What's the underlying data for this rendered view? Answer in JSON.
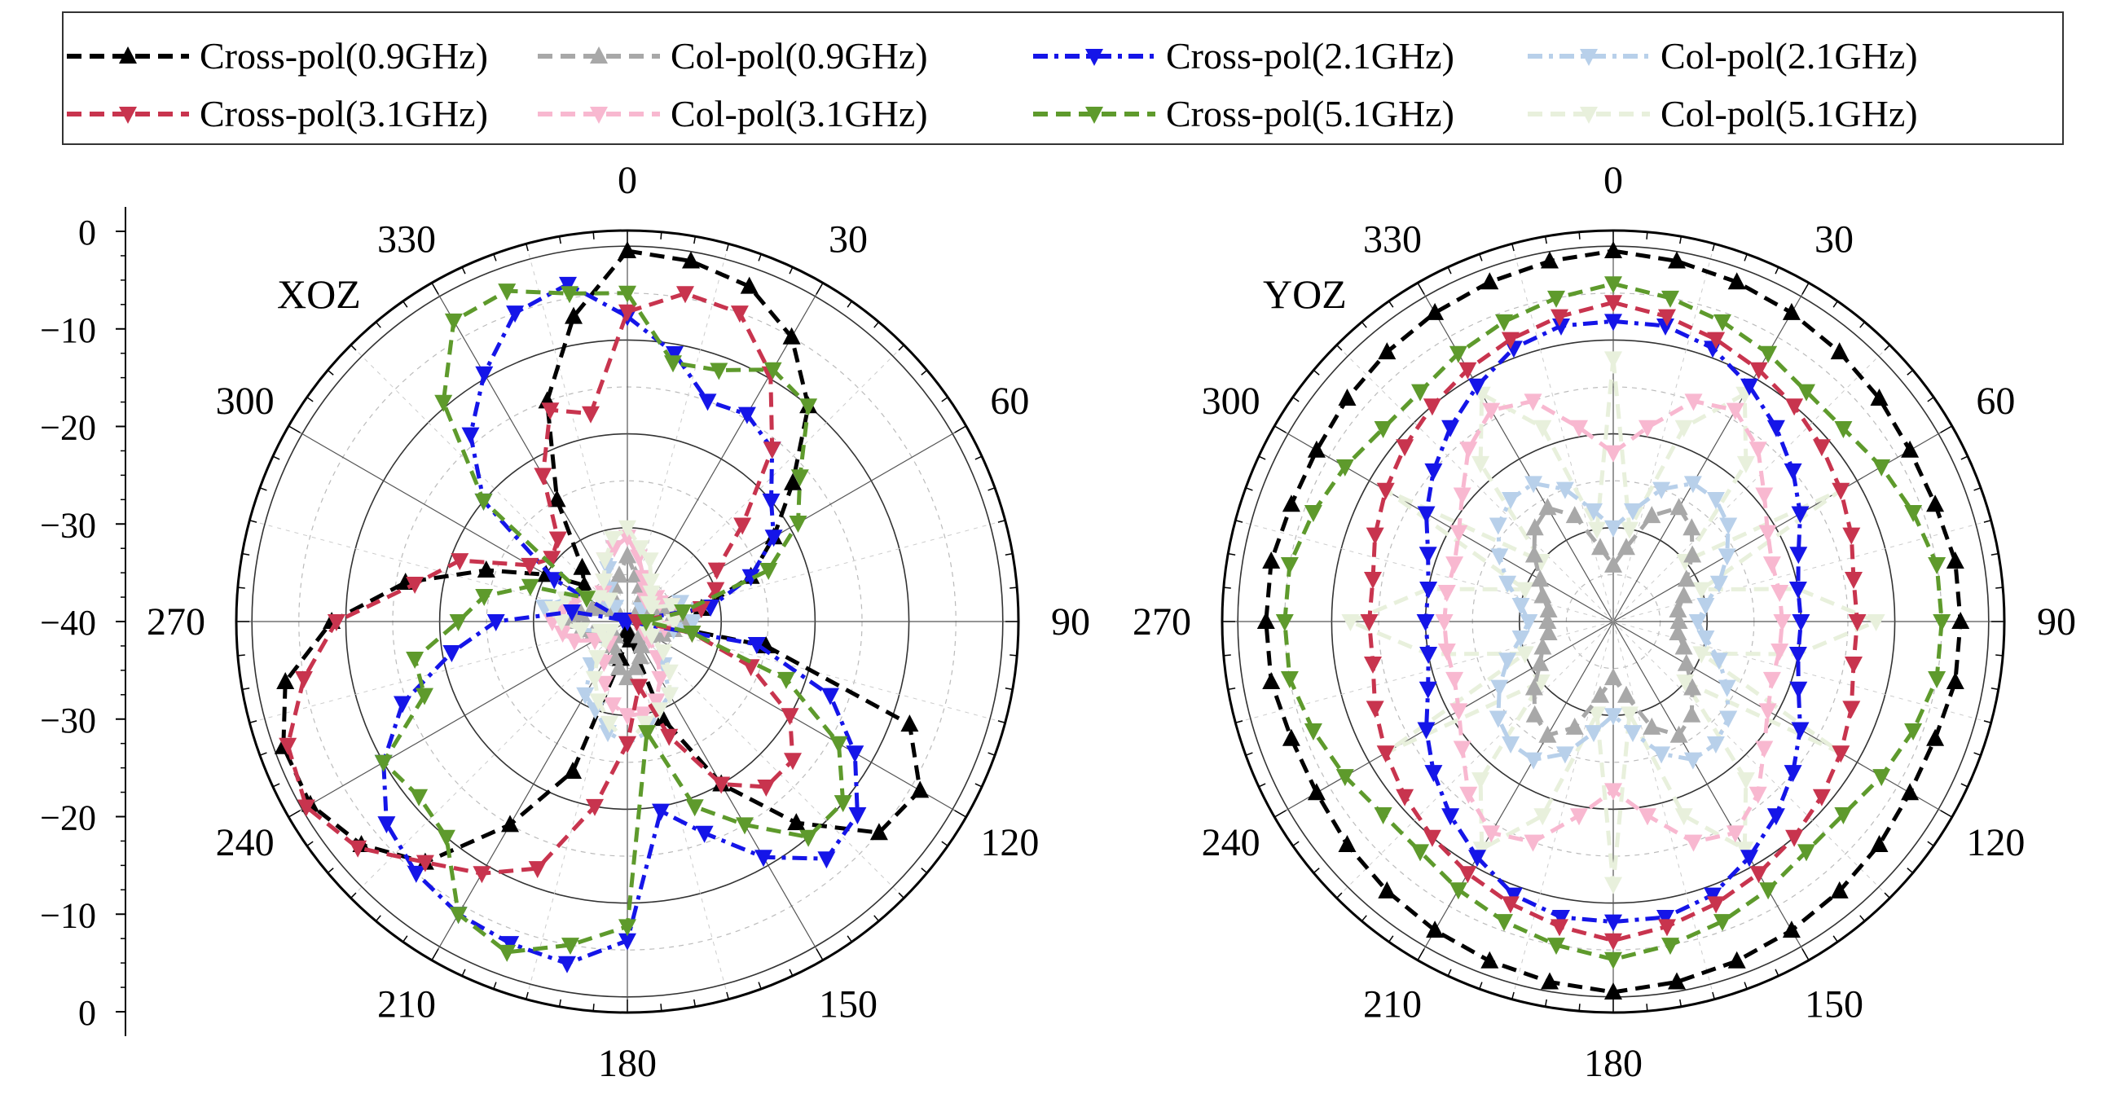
{
  "chart_data": {
    "type": "polar-line",
    "unit_note": "normalized radiation pattern in dB, radial range -40 (center) to 0 (outer ring)",
    "radial_range": [
      -40,
      0
    ],
    "radial_ticks": [
      0,
      -10,
      -20,
      -30,
      -40,
      -30,
      -20,
      -10,
      0
    ],
    "angle_ticks": [
      "0",
      "30",
      "60",
      "90",
      "120",
      "150",
      "180",
      "210",
      "240",
      "270",
      "300",
      "330"
    ],
    "angle_step_deg": 10,
    "legend": {
      "placement": "top, 4 columns x 2 rows",
      "entries": [
        {
          "label": "Cross-pol(0.9GHz)",
          "color": "#000000",
          "marker": "triangle-up",
          "dash": "dash"
        },
        {
          "label": "Col-pol(0.9GHz)",
          "color": "#a8a8a8",
          "marker": "triangle-up",
          "dash": "dash"
        },
        {
          "label": "Cross-pol(2.1GHz)",
          "color": "#1515e8",
          "marker": "triangle-down",
          "dash": "dashdot"
        },
        {
          "label": "Col-pol(2.1GHz)",
          "color": "#b8d0ea",
          "marker": "triangle-down",
          "dash": "dashdot"
        },
        {
          "label": "Cross-pol(3.1GHz)",
          "color": "#c8344e",
          "marker": "triangle-down",
          "dash": "dash"
        },
        {
          "label": "Col-pol(3.1GHz)",
          "color": "#f8b8d0",
          "marker": "triangle-down",
          "dash": "dash"
        },
        {
          "label": "Cross-pol(5.1GHz)",
          "color": "#5e9a2c",
          "marker": "triangle-down",
          "dash": "dash"
        },
        {
          "label": "Col-pol(5.1GHz)",
          "color": "#e8f0dc",
          "marker": "triangle-down",
          "dash": "dash"
        }
      ]
    },
    "panels": [
      {
        "title": "XOZ",
        "series": [
          {
            "name": "Cross-pol(0.9GHz)",
            "values": [
              -0.5,
              -1,
              -2,
              -5,
              -10,
              -17,
              -22,
              -26,
              -32,
              -38,
              -25,
              -8,
              -4,
              -5,
              -12,
              -20,
              -29,
              -38,
              -39,
              -36,
              -23,
              -15,
              -6.5,
              -3,
              -1,
              -1,
              -3,
              -8.5,
              -16,
              -24,
              -30,
              -34,
              -32.5,
              -25,
              -15,
              -7
            ]
          },
          {
            "name": "Col-pol(0.9GHz)",
            "values": [
              -33,
              -35,
              -36,
              -37,
              -38,
              -38,
              -37,
              -36,
              -35,
              -34,
              -35,
              -36,
              -37,
              -38,
              -38,
              -37,
              -36,
              -35,
              -34,
              -35,
              -36,
              -37,
              -38,
              -38,
              -37,
              -36,
              -35,
              -34,
              -35,
              -36,
              -37,
              -38,
              -38,
              -37,
              -36,
              -35
            ]
          },
          {
            "name": "Col-pol(2.1GHz)",
            "values": [
              -31,
              -33,
              -35,
              -36,
              -37,
              -38,
              -37,
              -34,
              -31,
              -33,
              -35,
              -37,
              -38,
              -37,
              -34,
              -31,
              -30,
              -28,
              -27,
              -28,
              -30,
              -31,
              -34,
              -37,
              -38,
              -37,
              -35,
              -33,
              -31,
              -33,
              -35,
              -37,
              -38,
              -36,
              -34,
              -32
            ]
          },
          {
            "name": "Col-pol(3.1GHz)",
            "values": [
              -31,
              -33,
              -35,
              -36,
              -37,
              -36,
              -36,
              -35,
              -34,
              -35,
              -36,
              -37,
              -38,
              -37,
              -35,
              -33,
              -31,
              -30,
              -30,
              -31,
              -33,
              -35,
              -37,
              -37,
              -36,
              -34,
              -33,
              -32,
              -33,
              -34,
              -35,
              -36,
              -36,
              -35,
              -33,
              -32
            ]
          },
          {
            "name": "Col-pol(5.1GHz)",
            "values": [
              -30,
              -32,
              -33,
              -35,
              -36,
              -37,
              -37,
              -35,
              -34,
              -35,
              -37,
              -38,
              -37,
              -35,
              -33,
              -31,
              -30,
              -29,
              -27,
              -29,
              -31,
              -33,
              -35,
              -37,
              -38,
              -37,
              -35,
              -33,
              -32,
              -33,
              -35,
              -36,
              -37,
              -35,
              -33,
              -31
            ]
          },
          {
            "name": "Cross-pol(2.1GHz)",
            "values": [
              -7.5,
              -11,
              -15,
              -14.5,
              -16,
              -20,
              -22,
              -26,
              -31,
              -40,
              -26,
              -17,
              -12,
              -8,
              -7,
              -11,
              -16,
              -19.5,
              -6,
              -3,
              -3.5,
              -4,
              -5,
              -6.5,
              -10,
              -14.5,
              -21,
              -26,
              -34,
              -39.5,
              -31,
              -20,
              -14,
              -9.5,
              -5,
              -3.5
            ]
          },
          {
            "name": "Cross-pol(3.1GHz)",
            "values": [
              -7,
              -4.5,
              -5,
              -9.5,
              -16,
              -24,
              -29,
              -30,
              -32,
              -39,
              -33,
              -26,
              -20,
              -17,
              -17,
              -20,
              -27,
              -33,
              -27,
              -20,
              -12,
              -9,
              -6.5,
              -2.5,
              -0.5,
              -1.5,
              -5,
              -9,
              -17,
              -21,
              -28,
              -29.5,
              -28.5,
              -22,
              -16,
              -17.5
            ]
          },
          {
            "name": "Cross-pol(5.1GHz)",
            "values": [
              -5,
              -12,
              -11.5,
              -9,
              -10,
              -16,
              -19,
              -24,
              -34,
              -38,
              -33,
              -22,
              -14,
              -10,
              -10,
              -15,
              -19,
              -28,
              -7.5,
              -5,
              -2.5,
              -4,
              -10,
              -11,
              -10,
              -17,
              -17,
              -22,
              -24.5,
              -29,
              -35,
              -20,
              -9.5,
              -3,
              -2.5,
              -4.5
            ]
          }
        ]
      },
      {
        "title": "YOZ",
        "series": [
          {
            "name": "Col-pol(5.1GHz)",
            "values": [
              -12,
              -30,
              -18,
              -12,
              -18,
              -30,
              -12,
              -30,
              -20,
              -12,
              -20,
              -30,
              -12,
              -30,
              -18,
              -12,
              -18,
              -30,
              -12,
              -30,
              -18,
              -12,
              -18,
              -30,
              -12,
              -30,
              -20,
              -12,
              -20,
              -30,
              -12,
              -30,
              -18,
              -12,
              -18,
              -30
            ]
          },
          {
            "name": "Col-pol(0.9GHz)",
            "values": [
              -34,
              -32,
              -28,
              -26,
              -27,
              -29,
              -31,
              -32,
              -33,
              -33,
              -33,
              -32,
              -31,
              -29,
              -27,
              -26,
              -28,
              -32,
              -34,
              -32,
              -28,
              -26,
              -27,
              -29,
              -31,
              -32,
              -33,
              -33,
              -33,
              -32,
              -31,
              -29,
              -27,
              -26,
              -28,
              -32
            ]
          },
          {
            "name": "Col-pol(2.1GHz)",
            "values": [
              -30,
              -28,
              -25,
              -23,
              -23,
              -24,
              -26,
              -28,
              -30,
              -31,
              -30,
              -28,
              -26,
              -24,
              -23,
              -23,
              -25,
              -28,
              -30,
              -28,
              -25,
              -23,
              -23,
              -24,
              -26,
              -28,
              -30,
              -31,
              -30,
              -28,
              -26,
              -24,
              -23,
              -23,
              -25,
              -28
            ]
          },
          {
            "name": "Col-pol(3.1GHz)",
            "values": [
              -22,
              -19,
              -15,
              -14,
              -16,
              -19,
              -21,
              -22,
              -22,
              -22,
              -22,
              -22,
              -21,
              -19,
              -16,
              -14,
              -15,
              -19,
              -22,
              -19,
              -15,
              -14,
              -16,
              -19,
              -21,
              -22,
              -22,
              -22,
              -22,
              -22,
              -21,
              -19,
              -16,
              -14,
              -15,
              -19
            ]
          },
          {
            "name": "Cross-pol(2.1GHz)",
            "values": [
              -8,
              -8,
              -9,
              -11,
              -13,
              -15,
              -17,
              -19,
              -20,
              -20,
              -20,
              -19,
              -17,
              -15,
              -13,
              -11,
              -9,
              -8,
              -8,
              -8,
              -9,
              -11,
              -13,
              -15,
              -17,
              -19,
              -20,
              -20,
              -20,
              -19,
              -17,
              -15,
              -13,
              -11,
              -9,
              -8
            ]
          },
          {
            "name": "Cross-pol(3.1GHz)",
            "values": [
              -6,
              -7,
              -8,
              -9,
              -10,
              -11,
              -12,
              -13,
              -14,
              -14,
              -14,
              -13,
              -12,
              -11,
              -10,
              -9,
              -8,
              -7,
              -6,
              -7,
              -8,
              -9,
              -10,
              -11,
              -12,
              -13,
              -14,
              -14,
              -14,
              -13,
              -12,
              -11,
              -10,
              -9,
              -8,
              -7
            ]
          },
          {
            "name": "Cross-pol(5.1GHz)",
            "values": [
              -4,
              -5,
              -6,
              -7,
              -8,
              -8,
              -7,
              -6,
              -5,
              -5,
              -5,
              -6,
              -7,
              -8,
              -8,
              -7,
              -6,
              -5,
              -4,
              -5,
              -6,
              -7,
              -8,
              -8,
              -7,
              -6,
              -5,
              -5,
              -5,
              -6,
              -7,
              -8,
              -8,
              -7,
              -6,
              -5
            ]
          },
          {
            "name": "Cross-pol(0.9GHz)",
            "values": [
              -0.5,
              -1,
              -1.5,
              -2,
              -2.5,
              -3,
              -3.5,
              -3.5,
              -3,
              -3,
              -3,
              -3.5,
              -3.5,
              -3,
              -2.5,
              -2,
              -1.5,
              -1,
              -0.5,
              -1,
              -1.5,
              -2,
              -2.5,
              -3,
              -3.5,
              -3.5,
              -3,
              -3,
              -3,
              -3.5,
              -3.5,
              -3,
              -2.5,
              -2,
              -1.5,
              -1
            ]
          }
        ]
      }
    ]
  }
}
